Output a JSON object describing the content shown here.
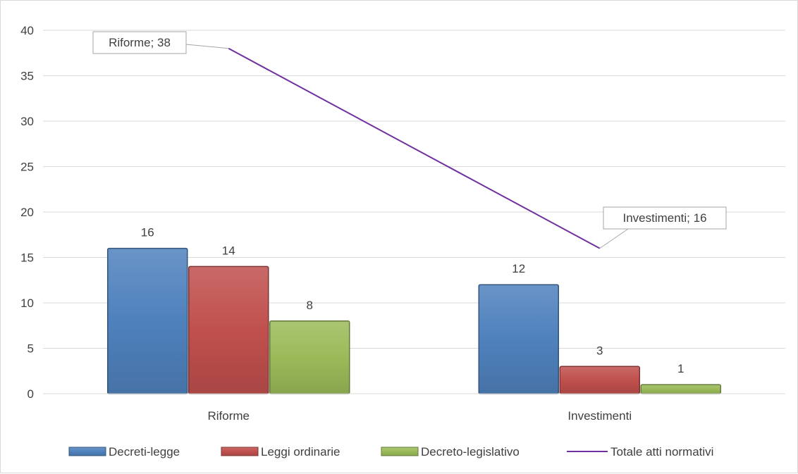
{
  "chart_data": {
    "type": "bar",
    "categories": [
      "Riforme",
      "Investimenti"
    ],
    "series": [
      {
        "name": "Decreti-legge",
        "values": [
          16,
          12
        ],
        "color": "#4f81bd"
      },
      {
        "name": "Leggi ordinarie",
        "values": [
          14,
          3
        ],
        "color": "#c0504d"
      },
      {
        "name": "Decreto-legislativo",
        "values": [
          8,
          1
        ],
        "color": "#9bbb59"
      }
    ],
    "line_series": {
      "name": "Totale atti normativi",
      "values": [
        38,
        16
      ],
      "color": "#7030a0"
    },
    "callouts": [
      "Riforme; 38",
      "Investimenti; 16"
    ],
    "data_labels": [
      [
        "16",
        "12"
      ],
      [
        "14",
        "3"
      ],
      [
        "8",
        "1"
      ]
    ],
    "ylim": [
      0,
      40
    ],
    "yticks": [
      0,
      5,
      10,
      15,
      20,
      25,
      30,
      35,
      40
    ],
    "grid": true,
    "legend_position": "bottom",
    "title": "",
    "xlabel": "",
    "ylabel": ""
  }
}
